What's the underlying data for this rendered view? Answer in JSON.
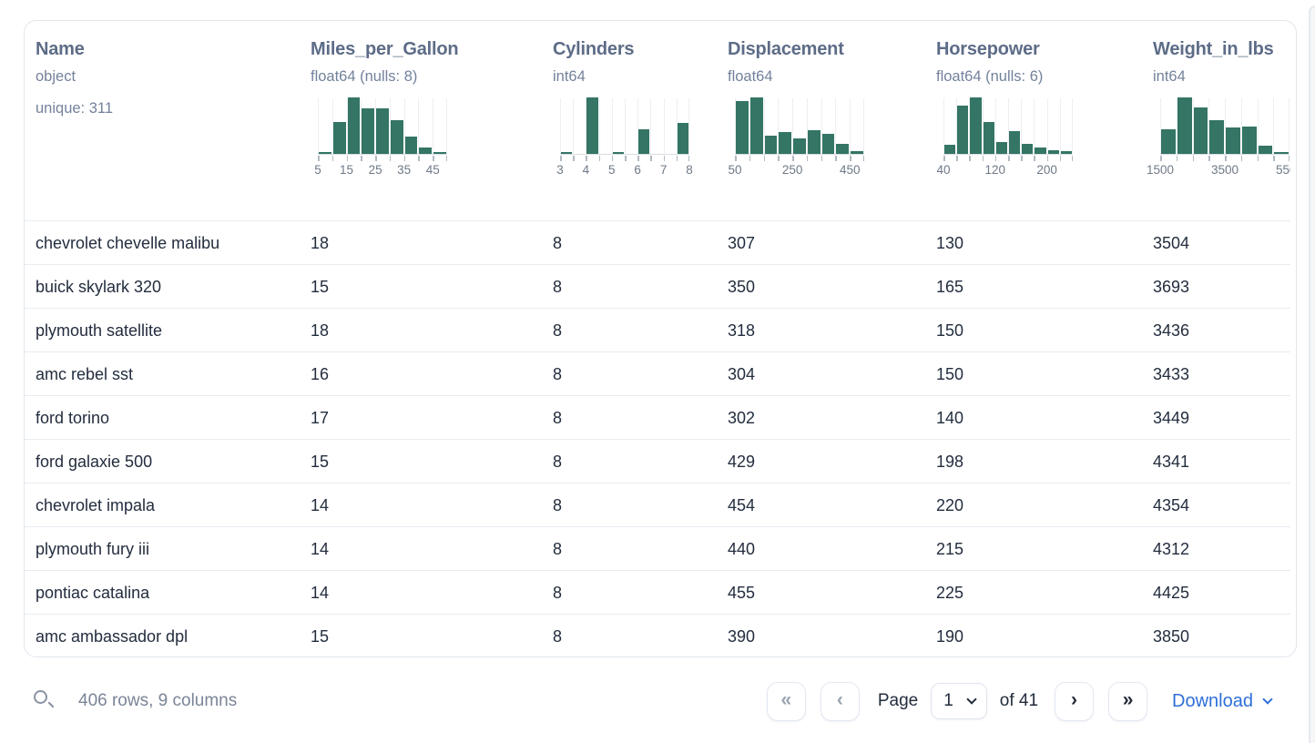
{
  "card": {
    "columns": [
      {
        "name": "Name",
        "dtype": "object",
        "note": "unique: 311",
        "histogram": null
      },
      {
        "name": "Miles_per_Gallon",
        "dtype": "float64 (nulls: 8)",
        "note": "",
        "histogram": {
          "type": "bar",
          "edges": [
            5,
            10,
            15,
            20,
            25,
            30,
            35,
            40,
            45,
            50
          ],
          "heights_pct": [
            3,
            57,
            100,
            81,
            80,
            60,
            31,
            12,
            3
          ],
          "tick_labels": [
            {
              "v": 5,
              "t": "5"
            },
            {
              "v": 15,
              "t": "15"
            },
            {
              "v": 25,
              "t": "25"
            },
            {
              "v": 35,
              "t": "35"
            },
            {
              "v": 45,
              "t": "45"
            }
          ]
        }
      },
      {
        "name": "Cylinders",
        "dtype": "int64",
        "note": "",
        "histogram": {
          "type": "bar",
          "edges": [
            3,
            3.5,
            4,
            4.5,
            5,
            5.5,
            6,
            6.5,
            7,
            7.5,
            8
          ],
          "heights_pct": [
            2,
            0,
            100,
            0,
            2,
            0,
            43,
            0,
            0,
            55
          ],
          "tick_labels": [
            {
              "v": 3,
              "t": "3"
            },
            {
              "v": 4,
              "t": "4"
            },
            {
              "v": 5,
              "t": "5"
            },
            {
              "v": 6,
              "t": "6"
            },
            {
              "v": 7,
              "t": "7"
            },
            {
              "v": 8,
              "t": "8"
            }
          ]
        }
      },
      {
        "name": "Displacement",
        "dtype": "float64",
        "note": "",
        "histogram": {
          "type": "bar",
          "edges": [
            50,
            100,
            150,
            200,
            250,
            300,
            350,
            400,
            450,
            500
          ],
          "heights_pct": [
            94,
            100,
            32,
            39,
            27,
            42,
            35,
            17,
            5
          ],
          "tick_labels": [
            {
              "v": 50,
              "t": "50"
            },
            {
              "v": 250,
              "t": "250"
            },
            {
              "v": 450,
              "t": "450"
            }
          ]
        }
      },
      {
        "name": "Horsepower",
        "dtype": "float64 (nulls: 6)",
        "note": "",
        "histogram": {
          "type": "bar",
          "edges": [
            40,
            60,
            80,
            100,
            120,
            140,
            160,
            180,
            200,
            220,
            240
          ],
          "heights_pct": [
            16,
            85,
            100,
            56,
            21,
            41,
            18,
            11,
            7,
            5
          ],
          "tick_labels": [
            {
              "v": 40,
              "t": "40"
            },
            {
              "v": 120,
              "t": "120"
            },
            {
              "v": 200,
              "t": "200"
            }
          ]
        }
      },
      {
        "name": "Weight_in_lbs",
        "dtype": "int64",
        "note": "",
        "histogram": {
          "type": "bar",
          "edges": [
            1500,
            2000,
            2500,
            3000,
            3500,
            4000,
            4500,
            5000,
            5500
          ],
          "heights_pct": [
            43,
            100,
            83,
            60,
            46,
            49,
            15,
            3
          ],
          "tick_labels": [
            {
              "v": 1500,
              "t": "1500"
            },
            {
              "v": 3500,
              "t": "3500"
            },
            {
              "v": 5500,
              "t": "5500"
            }
          ]
        }
      }
    ],
    "rows": [
      [
        "chevrolet chevelle malibu",
        "18",
        "8",
        "307",
        "130",
        "3504"
      ],
      [
        "buick skylark 320",
        "15",
        "8",
        "350",
        "165",
        "3693"
      ],
      [
        "plymouth satellite",
        "18",
        "8",
        "318",
        "150",
        "3436"
      ],
      [
        "amc rebel sst",
        "16",
        "8",
        "304",
        "150",
        "3433"
      ],
      [
        "ford torino",
        "17",
        "8",
        "302",
        "140",
        "3449"
      ],
      [
        "ford galaxie 500",
        "15",
        "8",
        "429",
        "198",
        "4341"
      ],
      [
        "chevrolet impala",
        "14",
        "8",
        "454",
        "220",
        "4354"
      ],
      [
        "plymouth fury iii",
        "14",
        "8",
        "440",
        "215",
        "4312"
      ],
      [
        "pontiac catalina",
        "14",
        "8",
        "455",
        "225",
        "4425"
      ],
      [
        "amc ambassador dpl",
        "15",
        "8",
        "390",
        "190",
        "3850"
      ]
    ]
  },
  "footer": {
    "summary": "406 rows, 9 columns",
    "pager": {
      "first": "«",
      "prev": "‹",
      "page_label": "Page",
      "current_page": "1",
      "of_label": "of 41",
      "next": "›",
      "last": "»"
    },
    "download_label": "Download"
  },
  "colors": {
    "histogram_green": "#347565",
    "link_blue": "#2f6fd9",
    "header_text": "#5d6c87",
    "row_text": "#232d3e"
  }
}
